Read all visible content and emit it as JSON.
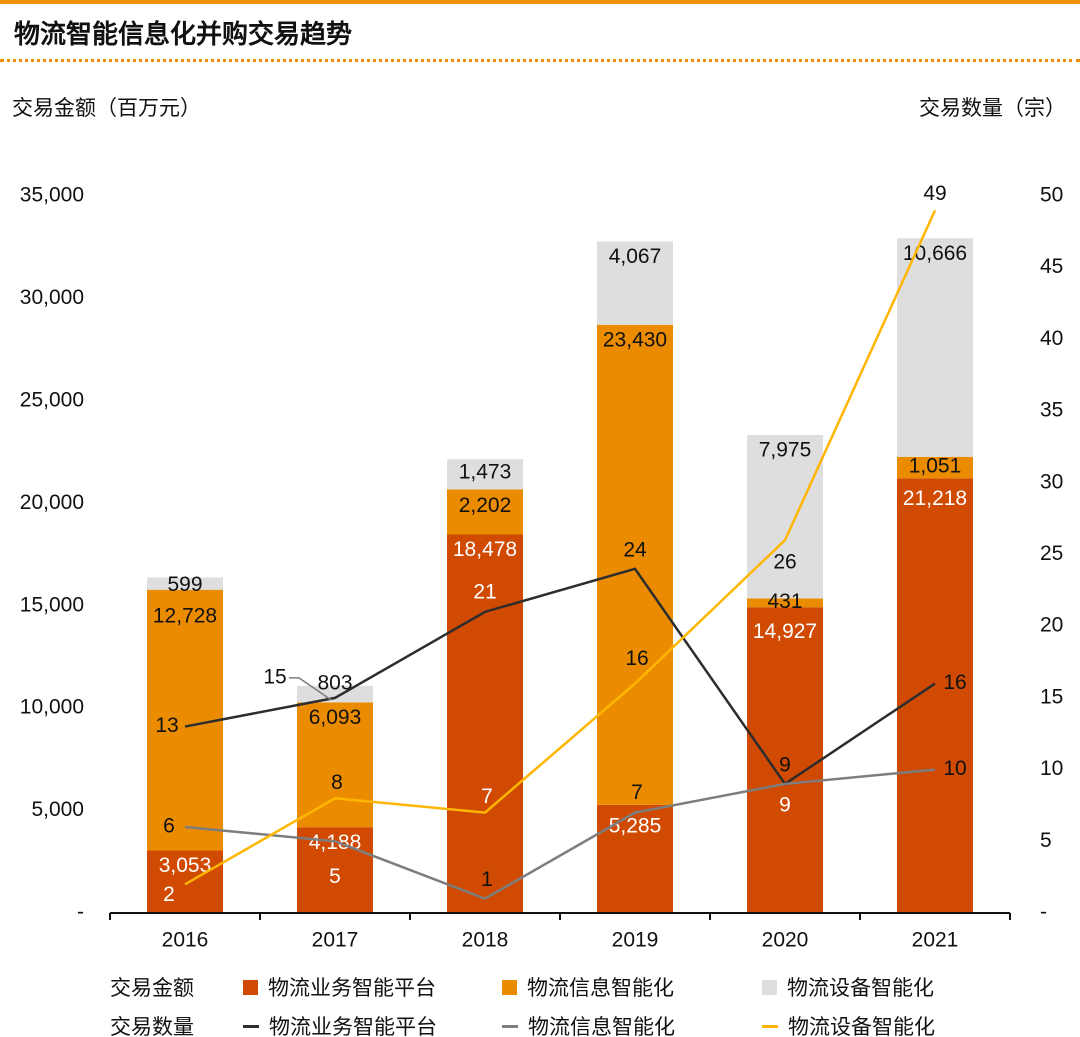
{
  "title": "物流智能信息化并购交易趋势",
  "chart_data": {
    "type": "bar",
    "title": "物流智能信息化并购交易趋势",
    "ylabel": "交易金额（百万元）",
    "y2label": "交易数量（宗）",
    "categories": [
      "2016",
      "2017",
      "2018",
      "2019",
      "2020",
      "2021"
    ],
    "ylim": [
      0,
      35000
    ],
    "y_ticks": [
      "-",
      "5,000",
      "10,000",
      "15,000",
      "20,000",
      "25,000",
      "30,000",
      "35,000"
    ],
    "y2lim": [
      0,
      50
    ],
    "y2_ticks": [
      "-",
      "5",
      "10",
      "15",
      "20",
      "25",
      "30",
      "35",
      "40",
      "45",
      "50"
    ],
    "bar_series": [
      {
        "name": "物流业务智能平台",
        "color": "#d04a02",
        "values": [
          3053,
          4188,
          18478,
          5285,
          14927,
          21218
        ]
      },
      {
        "name": "物流信息智能化",
        "color": "#eb8c00",
        "values": [
          12728,
          6093,
          2202,
          23430,
          431,
          1051
        ]
      },
      {
        "name": "物流设备智能化",
        "color": "#dedede",
        "values": [
          599,
          803,
          1473,
          4067,
          7975,
          10666
        ]
      }
    ],
    "line_series": [
      {
        "name": "物流业务智能平台",
        "color": "#2d2d2d",
        "values": [
          13,
          15,
          21,
          24,
          9,
          16
        ]
      },
      {
        "name": "物流信息智能化",
        "color": "#7d7d7d",
        "values": [
          6,
          5,
          1,
          7,
          9,
          10
        ]
      },
      {
        "name": "物流设备智能化",
        "color": "#ffb600",
        "values": [
          2,
          8,
          7,
          16,
          26,
          49
        ]
      }
    ],
    "legend": {
      "amount_label": "交易金额",
      "count_label": "交易数量",
      "placement": "bottom"
    }
  }
}
